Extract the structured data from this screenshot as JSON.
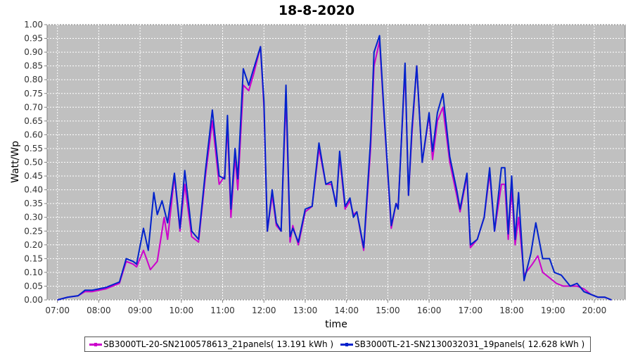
{
  "chart_data": {
    "type": "line",
    "title": "18-8-2020",
    "xlabel": "time",
    "ylabel": "Watt/Wp",
    "xlim": [
      "06:45",
      "20:45"
    ],
    "ylim": [
      0,
      1
    ],
    "x_ticks": [
      "07:00",
      "08:00",
      "09:00",
      "10:00",
      "11:00",
      "12:00",
      "13:00",
      "14:00",
      "15:00",
      "16:00",
      "17:00",
      "18:00",
      "19:00",
      "20:00"
    ],
    "y_ticks": [
      "0.00",
      "0.05",
      "0.10",
      "0.15",
      "0.20",
      "0.25",
      "0.30",
      "0.35",
      "0.40",
      "0.45",
      "0.50",
      "0.55",
      "0.60",
      "0.65",
      "0.70",
      "0.75",
      "0.80",
      "0.85",
      "0.90",
      "0.95",
      "1.00"
    ],
    "grid": true,
    "legend_position": "bottom",
    "series": [
      {
        "name": "SB3000TL-20-SN2100578613_21panels( 13.191 kWh )",
        "color": "#cc00cc",
        "points": [
          [
            "07:00",
            0.0
          ],
          [
            "07:15",
            0.01
          ],
          [
            "07:30",
            0.015
          ],
          [
            "07:40",
            0.03
          ],
          [
            "07:50",
            0.03
          ],
          [
            "08:00",
            0.035
          ],
          [
            "08:10",
            0.04
          ],
          [
            "08:20",
            0.05
          ],
          [
            "08:30",
            0.06
          ],
          [
            "08:40",
            0.14
          ],
          [
            "08:50",
            0.13
          ],
          [
            "08:55",
            0.12
          ],
          [
            "09:05",
            0.18
          ],
          [
            "09:15",
            0.11
          ],
          [
            "09:25",
            0.14
          ],
          [
            "09:35",
            0.3
          ],
          [
            "09:40",
            0.22
          ],
          [
            "09:50",
            0.45
          ],
          [
            "09:58",
            0.25
          ],
          [
            "10:05",
            0.42
          ],
          [
            "10:15",
            0.23
          ],
          [
            "10:25",
            0.21
          ],
          [
            "10:35",
            0.45
          ],
          [
            "10:45",
            0.65
          ],
          [
            "10:55",
            0.42
          ],
          [
            "11:03",
            0.45
          ],
          [
            "11:07",
            0.63
          ],
          [
            "11:12",
            0.3
          ],
          [
            "11:18",
            0.52
          ],
          [
            "11:22",
            0.4
          ],
          [
            "11:30",
            0.78
          ],
          [
            "11:38",
            0.76
          ],
          [
            "11:45",
            0.82
          ],
          [
            "11:55",
            0.92
          ],
          [
            "12:00",
            0.7
          ],
          [
            "12:05",
            0.25
          ],
          [
            "12:12",
            0.38
          ],
          [
            "12:18",
            0.27
          ],
          [
            "12:25",
            0.25
          ],
          [
            "12:32",
            0.74
          ],
          [
            "12:38",
            0.21
          ],
          [
            "12:42",
            0.27
          ],
          [
            "12:50",
            0.2
          ],
          [
            "13:00",
            0.32
          ],
          [
            "13:10",
            0.34
          ],
          [
            "13:20",
            0.55
          ],
          [
            "13:30",
            0.42
          ],
          [
            "13:38",
            0.42
          ],
          [
            "13:45",
            0.35
          ],
          [
            "13:50",
            0.52
          ],
          [
            "13:58",
            0.33
          ],
          [
            "14:05",
            0.36
          ],
          [
            "14:10",
            0.31
          ],
          [
            "14:15",
            0.32
          ],
          [
            "14:25",
            0.18
          ],
          [
            "14:35",
            0.55
          ],
          [
            "14:40",
            0.85
          ],
          [
            "14:48",
            0.94
          ],
          [
            "14:55",
            0.65
          ],
          [
            "15:05",
            0.26
          ],
          [
            "15:12",
            0.35
          ],
          [
            "15:15",
            0.34
          ],
          [
            "15:25",
            0.84
          ],
          [
            "15:30",
            0.38
          ],
          [
            "15:35",
            0.6
          ],
          [
            "15:42",
            0.85
          ],
          [
            "15:50",
            0.5
          ],
          [
            "16:00",
            0.67
          ],
          [
            "16:05",
            0.51
          ],
          [
            "16:12",
            0.65
          ],
          [
            "16:20",
            0.7
          ],
          [
            "16:30",
            0.5
          ],
          [
            "16:40",
            0.38
          ],
          [
            "16:45",
            0.32
          ],
          [
            "16:55",
            0.45
          ],
          [
            "17:00",
            0.19
          ],
          [
            "17:10",
            0.22
          ],
          [
            "17:20",
            0.3
          ],
          [
            "17:28",
            0.46
          ],
          [
            "17:35",
            0.25
          ],
          [
            "17:45",
            0.42
          ],
          [
            "17:50",
            0.42
          ],
          [
            "17:55",
            0.22
          ],
          [
            "18:00",
            0.4
          ],
          [
            "18:05",
            0.2
          ],
          [
            "18:10",
            0.3
          ],
          [
            "18:18",
            0.09
          ],
          [
            "18:30",
            0.13
          ],
          [
            "18:38",
            0.16
          ],
          [
            "18:45",
            0.1
          ],
          [
            "18:55",
            0.08
          ],
          [
            "19:05",
            0.06
          ],
          [
            "19:15",
            0.05
          ],
          [
            "19:25",
            0.05
          ],
          [
            "19:35",
            0.05
          ],
          [
            "19:45",
            0.04
          ],
          [
            "19:55",
            0.02
          ],
          [
            "20:05",
            0.01
          ],
          [
            "20:15",
            0.01
          ],
          [
            "20:25",
            0.0
          ]
        ]
      },
      {
        "name": "SB3000TL-21-SN2130032031_19panels( 12.628 kWh )",
        "color": "#0022cc",
        "points": [
          [
            "07:00",
            0.0
          ],
          [
            "07:15",
            0.01
          ],
          [
            "07:30",
            0.015
          ],
          [
            "07:40",
            0.035
          ],
          [
            "07:50",
            0.035
          ],
          [
            "08:00",
            0.04
          ],
          [
            "08:10",
            0.045
          ],
          [
            "08:20",
            0.055
          ],
          [
            "08:30",
            0.065
          ],
          [
            "08:40",
            0.15
          ],
          [
            "08:50",
            0.14
          ],
          [
            "08:55",
            0.13
          ],
          [
            "09:05",
            0.26
          ],
          [
            "09:12",
            0.18
          ],
          [
            "09:20",
            0.39
          ],
          [
            "09:25",
            0.31
          ],
          [
            "09:32",
            0.36
          ],
          [
            "09:40",
            0.28
          ],
          [
            "09:50",
            0.46
          ],
          [
            "09:58",
            0.26
          ],
          [
            "10:05",
            0.47
          ],
          [
            "10:15",
            0.25
          ],
          [
            "10:25",
            0.22
          ],
          [
            "10:35",
            0.47
          ],
          [
            "10:45",
            0.69
          ],
          [
            "10:55",
            0.45
          ],
          [
            "11:03",
            0.44
          ],
          [
            "11:07",
            0.67
          ],
          [
            "11:12",
            0.33
          ],
          [
            "11:18",
            0.55
          ],
          [
            "11:22",
            0.44
          ],
          [
            "11:30",
            0.84
          ],
          [
            "11:38",
            0.78
          ],
          [
            "11:45",
            0.84
          ],
          [
            "11:55",
            0.92
          ],
          [
            "12:00",
            0.72
          ],
          [
            "12:05",
            0.25
          ],
          [
            "12:12",
            0.4
          ],
          [
            "12:18",
            0.28
          ],
          [
            "12:25",
            0.25
          ],
          [
            "12:32",
            0.78
          ],
          [
            "12:38",
            0.23
          ],
          [
            "12:42",
            0.26
          ],
          [
            "12:50",
            0.21
          ],
          [
            "13:00",
            0.33
          ],
          [
            "13:10",
            0.34
          ],
          [
            "13:20",
            0.57
          ],
          [
            "13:30",
            0.42
          ],
          [
            "13:38",
            0.43
          ],
          [
            "13:45",
            0.34
          ],
          [
            "13:50",
            0.54
          ],
          [
            "13:58",
            0.34
          ],
          [
            "14:05",
            0.37
          ],
          [
            "14:10",
            0.3
          ],
          [
            "14:15",
            0.32
          ],
          [
            "14:25",
            0.19
          ],
          [
            "14:35",
            0.58
          ],
          [
            "14:40",
            0.9
          ],
          [
            "14:48",
            0.96
          ],
          [
            "14:55",
            0.66
          ],
          [
            "15:05",
            0.27
          ],
          [
            "15:12",
            0.35
          ],
          [
            "15:15",
            0.33
          ],
          [
            "15:25",
            0.86
          ],
          [
            "15:30",
            0.38
          ],
          [
            "15:35",
            0.62
          ],
          [
            "15:42",
            0.85
          ],
          [
            "15:50",
            0.5
          ],
          [
            "16:00",
            0.68
          ],
          [
            "16:05",
            0.54
          ],
          [
            "16:12",
            0.68
          ],
          [
            "16:20",
            0.75
          ],
          [
            "16:30",
            0.52
          ],
          [
            "16:40",
            0.4
          ],
          [
            "16:45",
            0.33
          ],
          [
            "16:55",
            0.46
          ],
          [
            "17:00",
            0.2
          ],
          [
            "17:10",
            0.22
          ],
          [
            "17:20",
            0.3
          ],
          [
            "17:28",
            0.48
          ],
          [
            "17:35",
            0.25
          ],
          [
            "17:45",
            0.48
          ],
          [
            "17:50",
            0.48
          ],
          [
            "17:55",
            0.24
          ],
          [
            "18:00",
            0.45
          ],
          [
            "18:05",
            0.22
          ],
          [
            "18:10",
            0.39
          ],
          [
            "18:18",
            0.07
          ],
          [
            "18:28",
            0.17
          ],
          [
            "18:35",
            0.28
          ],
          [
            "18:45",
            0.15
          ],
          [
            "18:55",
            0.15
          ],
          [
            "19:02",
            0.1
          ],
          [
            "19:12",
            0.09
          ],
          [
            "19:25",
            0.05
          ],
          [
            "19:35",
            0.06
          ],
          [
            "19:45",
            0.03
          ],
          [
            "19:55",
            0.02
          ],
          [
            "20:05",
            0.01
          ],
          [
            "20:15",
            0.01
          ],
          [
            "20:25",
            0.0
          ]
        ]
      }
    ]
  }
}
